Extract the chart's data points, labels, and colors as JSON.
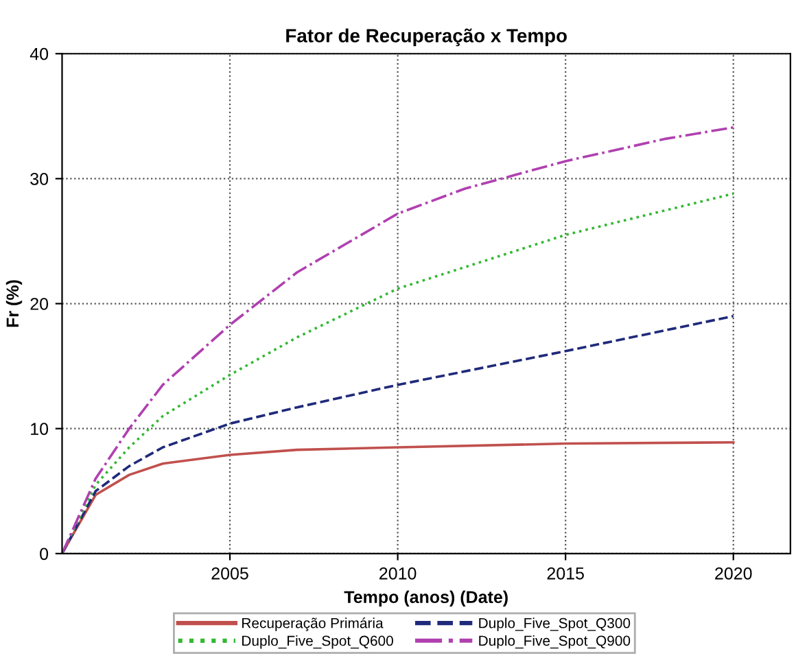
{
  "chart_data": {
    "type": "line",
    "title": "Fator de Recuperação x Tempo",
    "xlabel": "Tempo (anos) (Date)",
    "ylabel": "Fr (%)",
    "xlim": [
      2000,
      2021.7
    ],
    "xticks": [
      2005,
      2010,
      2015,
      2020
    ],
    "ylim": [
      0,
      40
    ],
    "yticks": [
      0,
      10,
      20,
      30,
      40
    ],
    "grid": true,
    "legend": "bottom",
    "series": [
      {
        "name": "Recuperação Primária",
        "color": "#c0504d",
        "line_style": "solid",
        "x": [
          2000,
          2001,
          2002,
          2003,
          2005,
          2007,
          2010,
          2015,
          2020
        ],
        "values": [
          0,
          4.7,
          6.3,
          7.2,
          7.9,
          8.3,
          8.5,
          8.8,
          8.9
        ]
      },
      {
        "name": "Duplo_Five_Spot_Q300",
        "color": "#1f2a7a",
        "line_style": "dashed",
        "x": [
          2000,
          2001,
          2002,
          2003,
          2005,
          2007,
          2010,
          2015,
          2020
        ],
        "values": [
          0,
          5.0,
          7.0,
          8.5,
          10.4,
          11.7,
          13.5,
          16.2,
          19.0
        ]
      },
      {
        "name": "Duplo_Five_Spot_Q600",
        "color": "#33b833",
        "line_style": "dotted",
        "x": [
          2000,
          2001,
          2002,
          2003,
          2005,
          2007,
          2010,
          2015,
          2020
        ],
        "values": [
          0,
          5.5,
          8.5,
          11.0,
          14.3,
          17.3,
          21.2,
          25.5,
          28.8
        ]
      },
      {
        "name": "Duplo_Five_Spot_Q900",
        "color": "#b040b0",
        "line_style": "dashdot",
        "x": [
          2000,
          2001,
          2002,
          2003,
          2005,
          2007,
          2010,
          2012,
          2015,
          2018,
          2020
        ],
        "values": [
          0,
          6.0,
          10.0,
          13.5,
          18.3,
          22.5,
          27.2,
          29.2,
          31.4,
          33.2,
          34.1
        ]
      }
    ]
  }
}
